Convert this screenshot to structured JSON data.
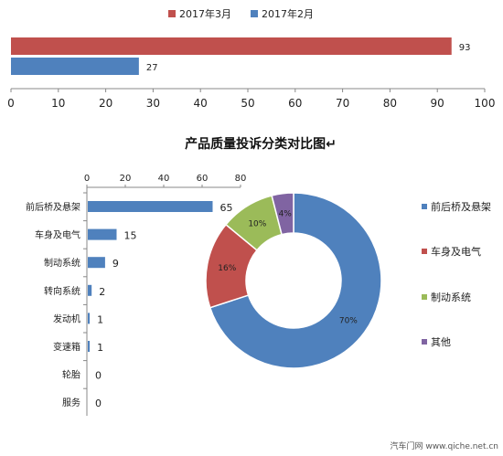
{
  "chart_data": [
    {
      "type": "bar",
      "orientation": "horizontal",
      "series": [
        {
          "name": "2017年3月",
          "values": [
            93
          ],
          "color": "#c0504d"
        },
        {
          "name": "2017年2月",
          "values": [
            27
          ],
          "color": "#4f81bd"
        }
      ],
      "xlim": [
        0,
        100
      ],
      "xticks": [
        "0",
        "10",
        "20",
        "30",
        "40",
        "50",
        "60",
        "70",
        "80",
        "90",
        "100"
      ],
      "legend": "top-center"
    },
    {
      "type": "bar",
      "orientation": "horizontal",
      "categories": [
        "前后桥及悬架",
        "车身及电气",
        "制动系统",
        "转向系统",
        "发动机",
        "变速箱",
        "轮胎",
        "服务"
      ],
      "values": [
        65,
        15,
        9,
        2,
        1,
        1,
        0,
        0
      ],
      "xlim": [
        0,
        80
      ],
      "xticks": [
        "0",
        "20",
        "40",
        "60",
        "80"
      ],
      "color": "#4f81bd"
    },
    {
      "type": "pie",
      "donut": true,
      "labels": [
        "前后桥及悬架",
        "车身及电气",
        "制动系统",
        "其他"
      ],
      "values": [
        70,
        16,
        10,
        4
      ],
      "value_labels": [
        "70%",
        "16%",
        "10%",
        "4%"
      ],
      "colors": [
        "#4f81bd",
        "#c0504d",
        "#9bbb59",
        "#8064a2"
      ],
      "legend": "right"
    }
  ],
  "title": "产品质量投诉分类对比图↵",
  "watermark": "汽车门网 www.qiche.net.cn"
}
